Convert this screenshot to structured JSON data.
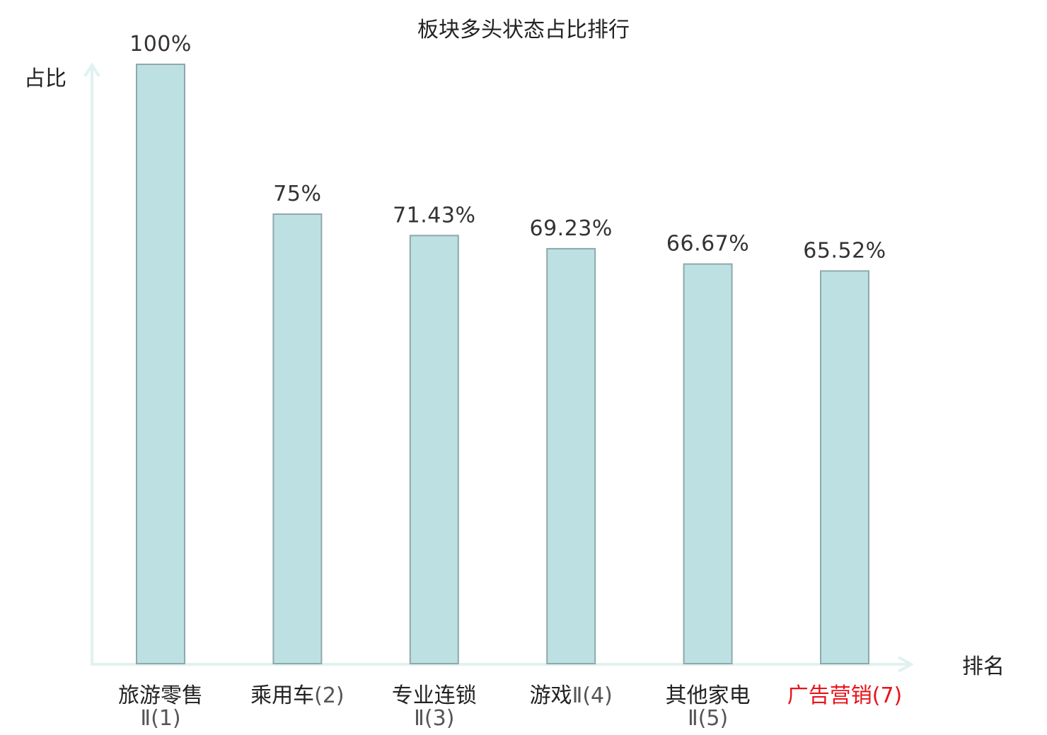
{
  "chart_data": {
    "type": "bar",
    "title": "板块多头状态占比排行",
    "ylabel": "占比",
    "xlabel": "排名",
    "ylim": [
      0,
      100
    ],
    "value_suffix": "%",
    "categories": [
      {
        "name": "旅游零售",
        "suffix": "Ⅱ(1)",
        "two_line": true,
        "highlight": false
      },
      {
        "name": "乘用车",
        "suffix": "(2)",
        "two_line": false,
        "highlight": false
      },
      {
        "name": "专业连锁",
        "suffix": "Ⅱ(3)",
        "two_line": true,
        "highlight": false
      },
      {
        "name": "游戏",
        "suffix": "Ⅱ(4)",
        "two_line": false,
        "highlight": false
      },
      {
        "name": "其他家电",
        "suffix": "Ⅱ(5)",
        "two_line": true,
        "highlight": false
      },
      {
        "name": "广告营销",
        "suffix": "(7)",
        "two_line": false,
        "highlight": true
      }
    ],
    "values": [
      100,
      75,
      71.43,
      69.23,
      66.67,
      65.52
    ],
    "value_labels": [
      "100%",
      "75%",
      "71.43%",
      "69.23%",
      "66.67%",
      "65.52%"
    ],
    "grid": false,
    "colors": {
      "bar_fill": "#bde0e3",
      "bar_stroke": "#8fa9ab",
      "axis": "#e0f2ef",
      "highlight_text": "#e8141a",
      "text": "#222222"
    }
  }
}
